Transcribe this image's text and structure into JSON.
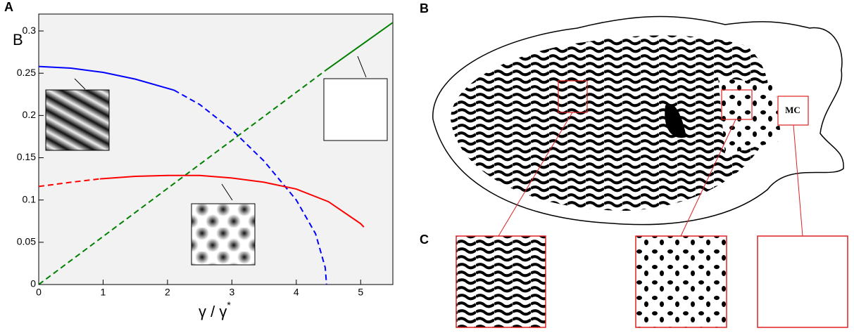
{
  "panel_labels": [
    "A",
    "B",
    "C"
  ],
  "chart_data": {
    "type": "line",
    "ylabel": "B",
    "xlabel": "γ / γ",
    "xlabel_sup": "*",
    "xlim": [
      0,
      5.5
    ],
    "ylim": [
      0,
      0.32
    ],
    "xticks": [
      0,
      1,
      2,
      3,
      4,
      5
    ],
    "yticks": [
      0,
      0.05,
      0.1,
      0.15,
      0.2,
      0.25,
      0.3
    ],
    "grid": false,
    "series": [
      {
        "color": "#0000ff",
        "style": "solid",
        "x": [
          0,
          0.5,
          1,
          1.5,
          2.1
        ],
        "values": [
          0.258,
          0.256,
          0.251,
          0.243,
          0.23
        ]
      },
      {
        "color": "#0000ff",
        "style": "dashed",
        "x": [
          2.1,
          2.5,
          3,
          3.5,
          4,
          4.3,
          4.45,
          4.47
        ],
        "values": [
          0.23,
          0.213,
          0.183,
          0.146,
          0.1,
          0.06,
          0.02,
          0
        ]
      },
      {
        "color": "#008000",
        "style": "dashed",
        "x": [
          0,
          4.45
        ],
        "values": [
          0,
          0.253
        ]
      },
      {
        "color": "#008000",
        "style": "solid",
        "x": [
          4.45,
          5.5
        ],
        "values": [
          0.253,
          0.31
        ]
      },
      {
        "color": "#ff0000",
        "style": "dashed",
        "x": [
          0,
          0.5,
          0.95
        ],
        "values": [
          0.116,
          0.121,
          0.125
        ]
      },
      {
        "color": "#ff0000",
        "style": "solid",
        "x": [
          0.95,
          1.5,
          2,
          2.5,
          3,
          3.5,
          4,
          4.5,
          5,
          5.05
        ],
        "values": [
          0.125,
          0.128,
          0.129,
          0.129,
          0.126,
          0.121,
          0.113,
          0.098,
          0.072,
          0.068
        ]
      }
    ]
  },
  "region_label": "MC"
}
